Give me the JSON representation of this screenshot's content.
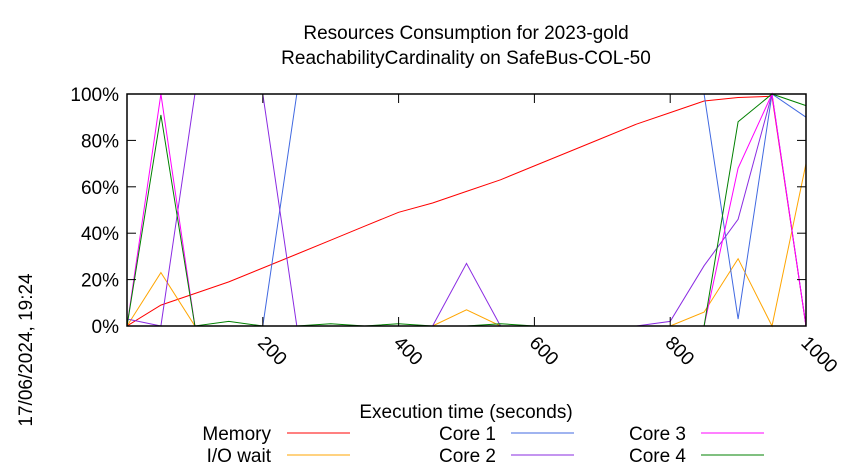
{
  "chart_data": {
    "type": "line",
    "title": "Resources Consumption for 2023-gold",
    "subtitle": "ReachabilityCardinality on SafeBus-COL-50",
    "xlabel": "Execution time (seconds)",
    "ylabel": "",
    "side_label": "17/06/2024, 19:24",
    "xlim": [
      0,
      1000
    ],
    "ylim": [
      0,
      100
    ],
    "xticks": [
      {
        "value": 200,
        "label": "200"
      },
      {
        "value": 400,
        "label": "400"
      },
      {
        "value": 600,
        "label": "600"
      },
      {
        "value": 800,
        "label": "800"
      },
      {
        "value": 1000,
        "label": "1000"
      }
    ],
    "yticks": [
      {
        "value": 0,
        "label": "0%"
      },
      {
        "value": 20,
        "label": "20%"
      },
      {
        "value": 40,
        "label": "40%"
      },
      {
        "value": 60,
        "label": "60%"
      },
      {
        "value": 80,
        "label": "80%"
      },
      {
        "value": 100,
        "label": "100%"
      }
    ],
    "grid": false,
    "legend_position": "bottom",
    "series": [
      {
        "name": "Memory",
        "color": "#ff0000",
        "points": [
          [
            0,
            0
          ],
          [
            50,
            9
          ],
          [
            100,
            14
          ],
          [
            150,
            19
          ],
          [
            200,
            25
          ],
          [
            250,
            31
          ],
          [
            300,
            37
          ],
          [
            350,
            43
          ],
          [
            400,
            49
          ],
          [
            450,
            53
          ],
          [
            500,
            58
          ],
          [
            550,
            63
          ],
          [
            600,
            69
          ],
          [
            650,
            75
          ],
          [
            700,
            81
          ],
          [
            750,
            87
          ],
          [
            800,
            92
          ],
          [
            850,
            97
          ],
          [
            900,
            98.5
          ],
          [
            950,
            99
          ],
          [
            1000,
            0
          ]
        ]
      },
      {
        "name": "I/O wait",
        "color": "#ffa500",
        "points": [
          [
            0,
            0
          ],
          [
            50,
            23
          ],
          [
            100,
            0
          ],
          [
            150,
            0
          ],
          [
            200,
            0
          ],
          [
            250,
            0
          ],
          [
            300,
            0
          ],
          [
            350,
            0
          ],
          [
            400,
            0
          ],
          [
            450,
            0
          ],
          [
            500,
            7
          ],
          [
            550,
            0
          ],
          [
            600,
            0
          ],
          [
            650,
            0
          ],
          [
            700,
            0
          ],
          [
            750,
            0
          ],
          [
            800,
            0
          ],
          [
            850,
            6
          ],
          [
            900,
            29
          ],
          [
            950,
            0
          ],
          [
            1000,
            70
          ]
        ]
      },
      {
        "name": "Core 1",
        "color": "#4169e1",
        "points": [
          [
            0,
            0
          ],
          [
            50,
            0
          ],
          [
            100,
            0
          ],
          [
            150,
            0
          ],
          [
            200,
            0
          ],
          [
            250,
            100
          ],
          [
            300,
            100
          ],
          [
            350,
            100
          ],
          [
            400,
            100
          ],
          [
            450,
            100
          ],
          [
            500,
            100
          ],
          [
            550,
            100
          ],
          [
            600,
            100
          ],
          [
            650,
            100
          ],
          [
            700,
            100
          ],
          [
            750,
            100
          ],
          [
            800,
            100
          ],
          [
            850,
            100
          ],
          [
            900,
            3
          ],
          [
            950,
            100
          ],
          [
            1000,
            90
          ]
        ]
      },
      {
        "name": "Core 2",
        "color": "#8a2be2",
        "points": [
          [
            0,
            3
          ],
          [
            50,
            0
          ],
          [
            100,
            100
          ],
          [
            150,
            100
          ],
          [
            200,
            100
          ],
          [
            250,
            0
          ],
          [
            300,
            0
          ],
          [
            350,
            0
          ],
          [
            400,
            0
          ],
          [
            450,
            0
          ],
          [
            500,
            27
          ],
          [
            550,
            0
          ],
          [
            600,
            0
          ],
          [
            650,
            0
          ],
          [
            700,
            0
          ],
          [
            750,
            0
          ],
          [
            800,
            2
          ],
          [
            850,
            26
          ],
          [
            900,
            46
          ],
          [
            950,
            100
          ],
          [
            1000,
            0
          ]
        ]
      },
      {
        "name": "Core 3",
        "color": "#ff00ff",
        "points": [
          [
            0,
            0
          ],
          [
            50,
            100
          ],
          [
            100,
            0
          ],
          [
            150,
            0
          ],
          [
            200,
            0
          ],
          [
            250,
            0
          ],
          [
            300,
            0
          ],
          [
            350,
            0
          ],
          [
            400,
            0
          ],
          [
            450,
            0
          ],
          [
            500,
            0
          ],
          [
            550,
            0
          ],
          [
            600,
            0
          ],
          [
            650,
            0
          ],
          [
            700,
            0
          ],
          [
            750,
            0
          ],
          [
            800,
            0
          ],
          [
            850,
            0
          ],
          [
            900,
            68
          ],
          [
            950,
            100
          ],
          [
            1000,
            0
          ]
        ]
      },
      {
        "name": "Core 4",
        "color": "#008000",
        "points": [
          [
            0,
            0
          ],
          [
            50,
            91
          ],
          [
            100,
            0
          ],
          [
            150,
            2
          ],
          [
            200,
            0
          ],
          [
            250,
            0
          ],
          [
            300,
            1
          ],
          [
            350,
            0
          ],
          [
            400,
            1
          ],
          [
            450,
            0
          ],
          [
            500,
            0
          ],
          [
            550,
            1
          ],
          [
            600,
            0
          ],
          [
            650,
            0
          ],
          [
            700,
            0
          ],
          [
            750,
            0
          ],
          [
            800,
            0
          ],
          [
            850,
            0
          ],
          [
            900,
            88
          ],
          [
            950,
            100
          ],
          [
            1000,
            95
          ]
        ]
      }
    ]
  }
}
